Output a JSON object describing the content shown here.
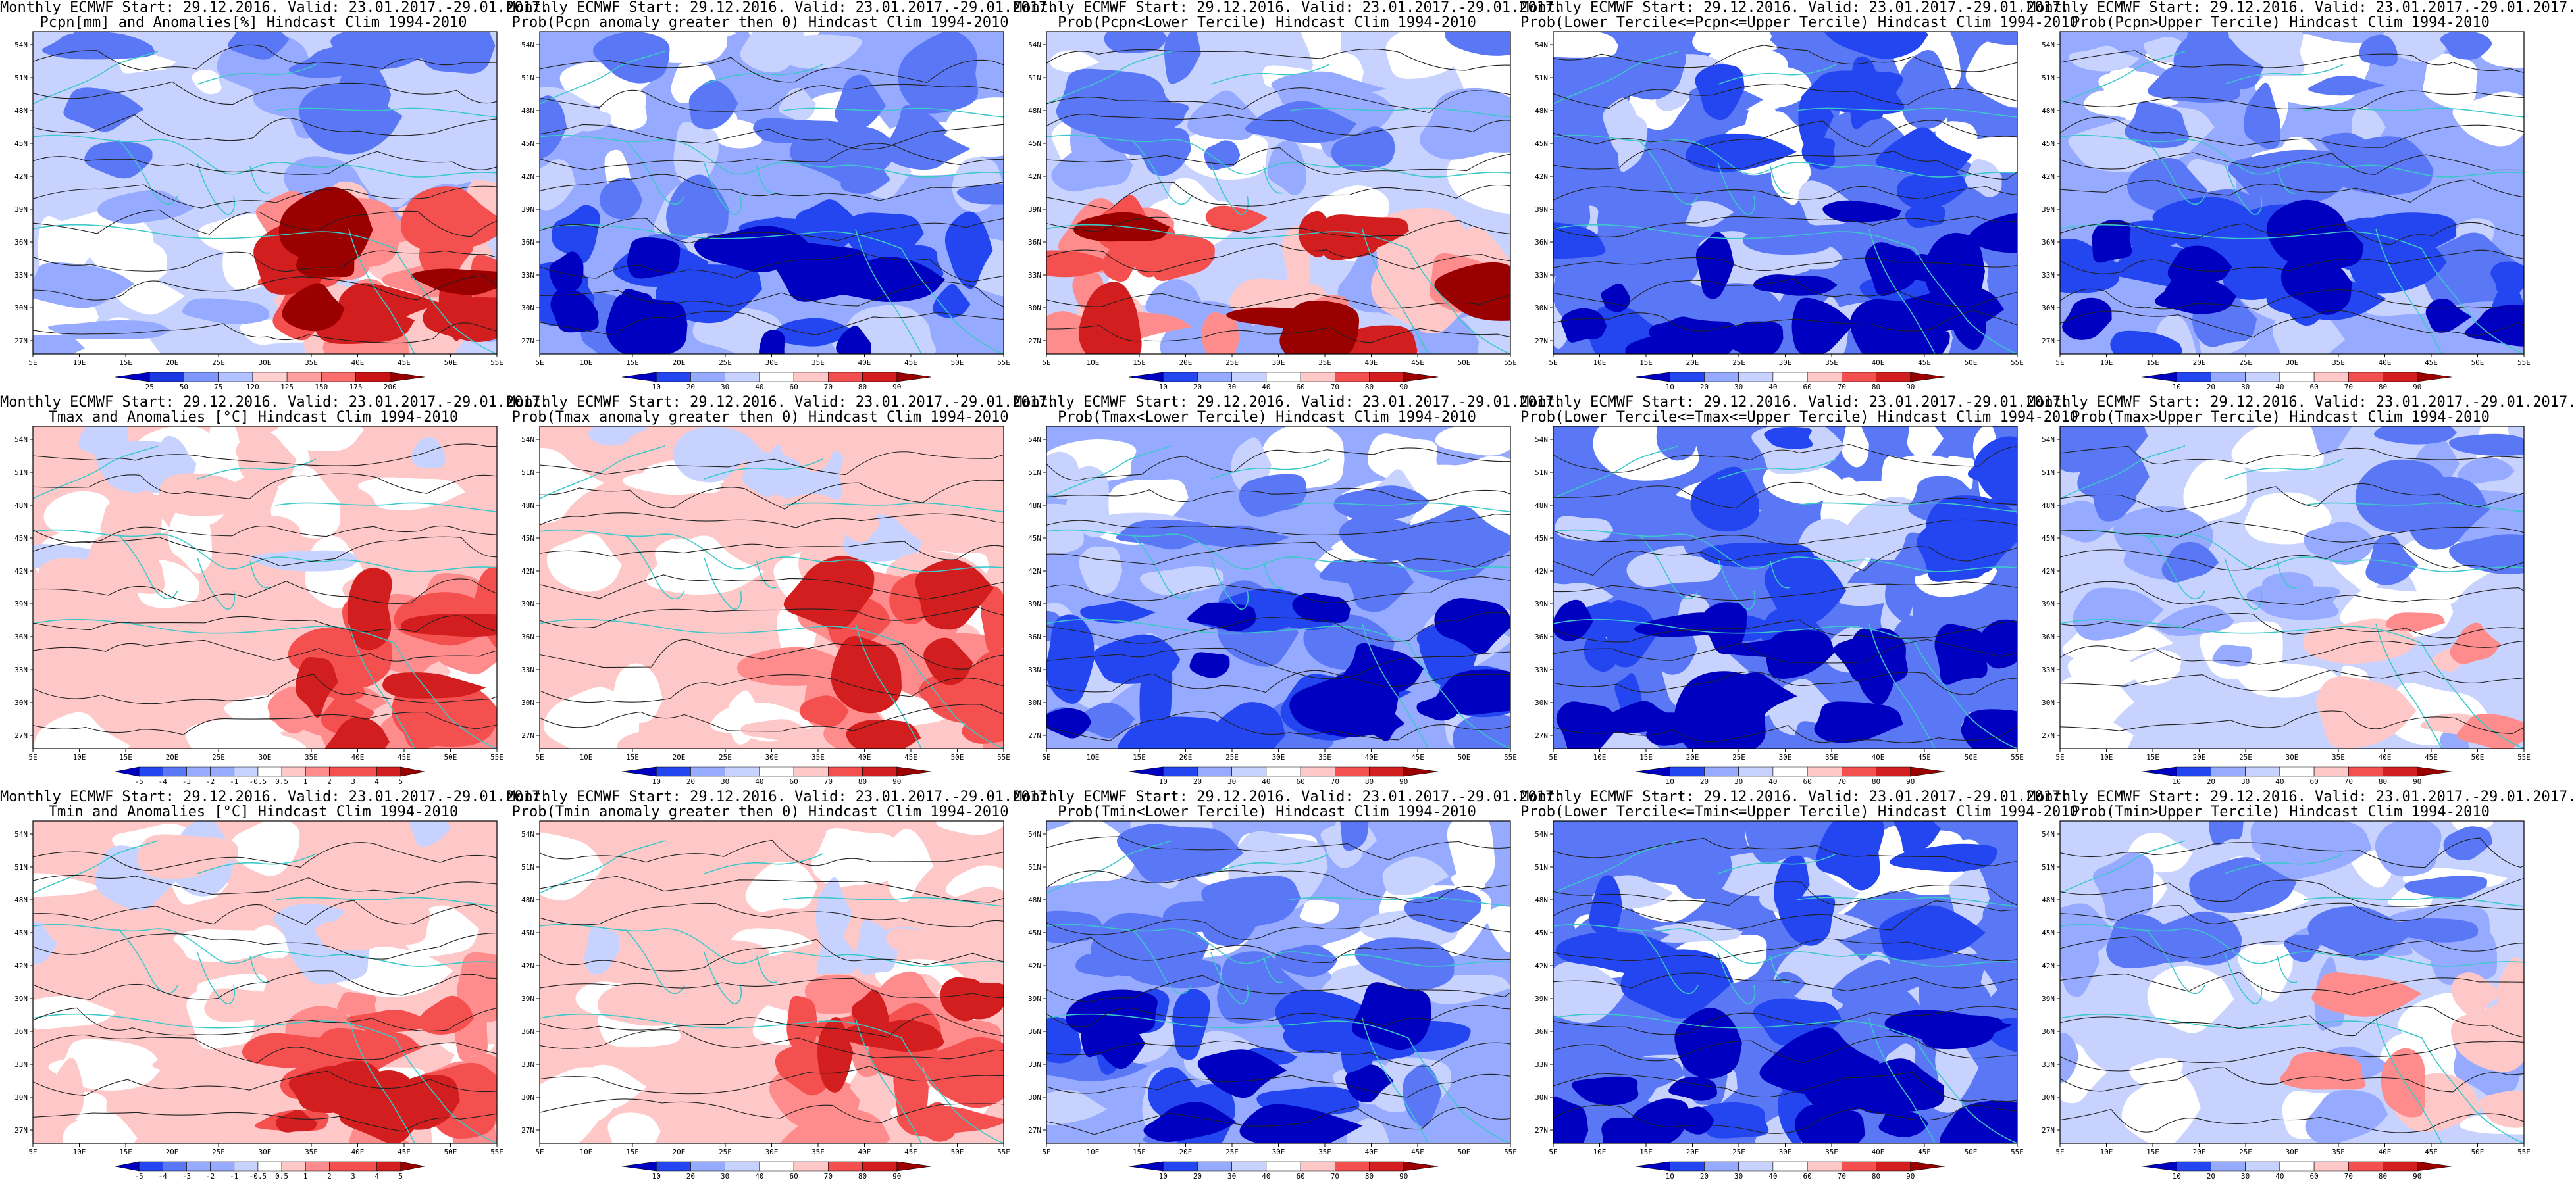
{
  "common": {
    "lon_ticks": [
      "5E",
      "10E",
      "15E",
      "20E",
      "25E",
      "30E",
      "35E",
      "40E",
      "45E",
      "50E",
      "55E"
    ],
    "lat_ticks": [
      "27N",
      "30N",
      "33N",
      "36N",
      "39N",
      "42N",
      "45N",
      "48N",
      "51N",
      "54N"
    ]
  },
  "palettes": {
    "anom_pcpn": [
      "#0000c0",
      "#1a37e0",
      "#4c6bf5",
      "#7f96fb",
      "#b2c1ff",
      "#ffffff",
      "#ffd0d0",
      "#ff9f9f",
      "#fb6e6e",
      "#e63c3c",
      "#c81414",
      "#960000"
    ],
    "prob": [
      "#0000c0",
      "#2346f0",
      "#5a78f5",
      "#96aaff",
      "#c8d2ff",
      "#ffffff",
      "#ffc8c8",
      "#ff8c8c",
      "#f55050",
      "#d21e1e",
      "#9b0000"
    ],
    "temp": [
      "#0000c0",
      "#2346f0",
      "#5a78f5",
      "#96aaff",
      "#c8d2ff",
      "#ffffff",
      "#ffc8c8",
      "#ff8c8c",
      "#f55050",
      "#d21e1e",
      "#9b0000"
    ]
  },
  "panels": [
    {
      "id": "p11",
      "title1": "Monthly ECMWF Start: 29.12.2016. Valid: 23.01.2017.-29.01.2017.",
      "title2": "Pcpn[mm] and Anomalies[%] Hindcast Clim 1994-2010",
      "cbar_labels": [
        "25",
        "50",
        "75",
        "120",
        "125",
        "150",
        "175",
        "200"
      ],
      "field": {
        "type": "anom",
        "dominant": "mixed",
        "blue": 0.45,
        "red": 0.35,
        "hot": "se"
      }
    },
    {
      "id": "p12",
      "title1": "Monthly ECMWF Start: 29.12.2016. Valid: 23.01.2017.-29.01.2017.",
      "title2": "Prob(Pcpn anomaly greater then 0) Hindcast Clim 1994-2010",
      "cbar_labels": [
        "10",
        "20",
        "30",
        "40",
        "60",
        "70",
        "80",
        "90"
      ],
      "field": {
        "type": "prob",
        "dominant": "blue",
        "blue": 0.75,
        "red": 0.0,
        "hot": "s"
      }
    },
    {
      "id": "p13",
      "title1": "Monthly ECMWF Start: 29.12.2016. Valid: 23.01.2017.-29.01.2017.",
      "title2": "Prob(Pcpn<Lower Tercile) Hindcast Clim 1994-2010",
      "cbar_labels": [
        "10",
        "20",
        "30",
        "40",
        "60",
        "70",
        "80",
        "90"
      ],
      "field": {
        "type": "prob",
        "dominant": "mixed",
        "blue": 0.55,
        "red": 0.25,
        "hot": "s"
      }
    },
    {
      "id": "p14",
      "title1": "Monthly ECMWF Start: 29.12.2016. Valid: 23.01.2017.-29.01.2017.",
      "title2": "Prob(Lower Tercile<=Pcpn<=Upper Tercile) Hindcast Clim 1994-2010",
      "cbar_labels": [
        "10",
        "20",
        "30",
        "40",
        "60",
        "70",
        "80",
        "90"
      ],
      "field": {
        "type": "prob",
        "dominant": "blue",
        "blue": 0.95,
        "red": 0.0,
        "hot": "s"
      }
    },
    {
      "id": "p15",
      "title1": "Monthly ECMWF Start: 29.12.2016. Valid: 23.01.2017.-29.01.2017.",
      "title2": "Prob(Pcpn>Upper Tercile) Hindcast Clim 1994-2010",
      "cbar_labels": [
        "10",
        "20",
        "30",
        "40",
        "60",
        "70",
        "80",
        "90"
      ],
      "field": {
        "type": "prob",
        "dominant": "blue",
        "blue": 0.7,
        "red": 0.0,
        "hot": "s"
      }
    },
    {
      "id": "p21",
      "title1": "Monthly ECMWF Start: 29.12.2016. Valid: 23.01.2017.-29.01.2017.",
      "title2": "Tmax and Anomalies [°C] Hindcast Clim 1994-2010",
      "cbar_labels": [
        "-5",
        "-4",
        "-3",
        "-2",
        "-1",
        "-0.5",
        "0.5",
        "1",
        "2",
        "3",
        "4",
        "5"
      ],
      "field": {
        "type": "temp",
        "dominant": "red",
        "blue": 0.1,
        "red": 0.55,
        "hot": "se"
      }
    },
    {
      "id": "p22",
      "title1": "Monthly ECMWF Start: 29.12.2016. Valid: 23.01.2017.-29.01.2017.",
      "title2": "Prob(Tmax anomaly greater then 0) Hindcast Clim 1994-2010",
      "cbar_labels": [
        "10",
        "20",
        "30",
        "40",
        "60",
        "70",
        "80",
        "90"
      ],
      "field": {
        "type": "prob",
        "dominant": "red",
        "blue": 0.05,
        "red": 0.6,
        "hot": "se"
      }
    },
    {
      "id": "p23",
      "title1": "Monthly ECMWF Start: 29.12.2016. Valid: 23.01.2017.-29.01.2017.",
      "title2": "Prob(Tmax<Lower Tercile) Hindcast Clim 1994-2010",
      "cbar_labels": [
        "10",
        "20",
        "30",
        "40",
        "60",
        "70",
        "80",
        "90"
      ],
      "field": {
        "type": "prob",
        "dominant": "blue",
        "blue": 0.85,
        "red": 0.0,
        "hot": "s"
      }
    },
    {
      "id": "p24",
      "title1": "Monthly ECMWF Start: 29.12.2016. Valid: 23.01.2017.-29.01.2017.",
      "title2": "Prob(Lower Tercile<=Tmax<=Upper Tercile) Hindcast Clim 1994-2010",
      "cbar_labels": [
        "10",
        "20",
        "30",
        "40",
        "60",
        "70",
        "80",
        "90"
      ],
      "field": {
        "type": "prob",
        "dominant": "blue",
        "blue": 0.92,
        "red": 0.0,
        "hot": "s"
      }
    },
    {
      "id": "p25",
      "title1": "Monthly ECMWF Start: 29.12.2016. Valid: 23.01.2017.-29.01.2017.",
      "title2": "Prob(Tmax>Upper Tercile) Hindcast Clim 1994-2010",
      "cbar_labels": [
        "10",
        "20",
        "30",
        "40",
        "60",
        "70",
        "80",
        "90"
      ],
      "field": {
        "type": "prob",
        "dominant": "mixed",
        "blue": 0.5,
        "red": 0.15,
        "hot": "se"
      }
    },
    {
      "id": "p31",
      "title1": "Monthly ECMWF Start: 29.12.2016. Valid: 23.01.2017.-29.01.2017.",
      "title2": "Tmin and Anomalies [°C] Hindcast Clim 1994-2010",
      "cbar_labels": [
        "-5",
        "-4",
        "-3",
        "-2",
        "-1",
        "-0.5",
        "0.5",
        "1",
        "2",
        "3",
        "4",
        "5"
      ],
      "field": {
        "type": "temp",
        "dominant": "red",
        "blue": 0.15,
        "red": 0.5,
        "hot": "se"
      }
    },
    {
      "id": "p32",
      "title1": "Monthly ECMWF Start: 29.12.2016. Valid: 23.01.2017.-29.01.2017.",
      "title2": "Prob(Tmin anomaly greater then 0) Hindcast Clim 1994-2010",
      "cbar_labels": [
        "10",
        "20",
        "30",
        "40",
        "60",
        "70",
        "80",
        "90"
      ],
      "field": {
        "type": "prob",
        "dominant": "red",
        "blue": 0.1,
        "red": 0.6,
        "hot": "se"
      }
    },
    {
      "id": "p33",
      "title1": "Monthly ECMWF Start: 29.12.2016. Valid: 23.01.2017.-29.01.2017.",
      "title2": "Prob(Tmin<Lower Tercile) Hindcast Clim 1994-2010",
      "cbar_labels": [
        "10",
        "20",
        "30",
        "40",
        "60",
        "70",
        "80",
        "90"
      ],
      "field": {
        "type": "prob",
        "dominant": "blue",
        "blue": 0.85,
        "red": 0.0,
        "hot": "s"
      }
    },
    {
      "id": "p34",
      "title1": "Monthly ECMWF Start: 29.12.2016. Valid: 23.01.2017.-29.01.2017.",
      "title2": "Prob(Lower Tercile<=Tmin<=Upper Tercile) Hindcast Clim 1994-2010",
      "cbar_labels": [
        "10",
        "20",
        "30",
        "40",
        "60",
        "70",
        "80",
        "90"
      ],
      "field": {
        "type": "prob",
        "dominant": "blue",
        "blue": 0.9,
        "red": 0.0,
        "hot": "s"
      }
    },
    {
      "id": "p35",
      "title1": "Monthly ECMWF Start: 29.12.2016. Valid: 23.01.2017.-29.01.2017.",
      "title2": "Prob(Tmin>Upper Tercile) Hindcast Clim 1994-2010",
      "cbar_labels": [
        "10",
        "20",
        "30",
        "40",
        "60",
        "70",
        "80",
        "90"
      ],
      "field": {
        "type": "prob",
        "dominant": "mixed",
        "blue": 0.5,
        "red": 0.15,
        "hot": "se"
      }
    }
  ]
}
